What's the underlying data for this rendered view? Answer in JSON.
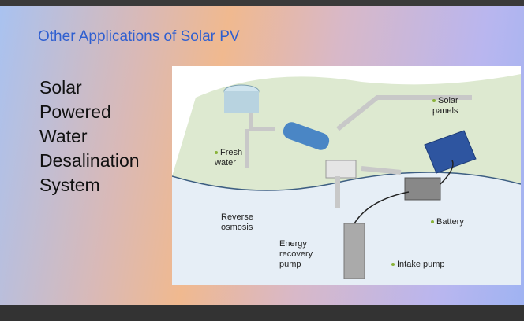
{
  "slide": {
    "title": "Other Applications of Solar PV",
    "body_lines": [
      "Solar",
      "Powered",
      "Water",
      "Desalination",
      "System"
    ]
  },
  "diagram": {
    "labels": {
      "solar_panels": "Solar panels",
      "fresh_water": "Fresh water",
      "reverse_osmosis": "Reverse osmosis",
      "battery": "Battery",
      "energy_recovery_pump": "Energy recovery pump",
      "intake_pump": "Intake pump"
    }
  }
}
